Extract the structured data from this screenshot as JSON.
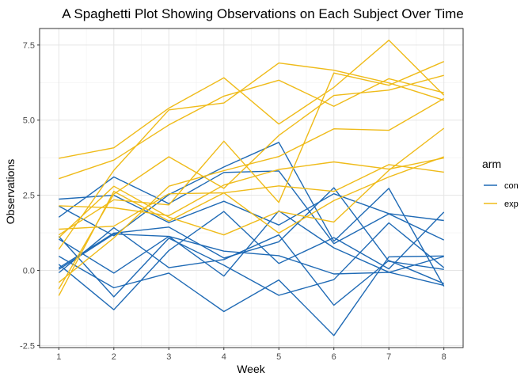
{
  "chart_data": {
    "type": "line",
    "title": "A Spaghetti Plot Showing Observations on Each Subject Over Time",
    "xlabel": "Week",
    "ylabel": "Observations",
    "x": [
      1,
      2,
      3,
      4,
      5,
      6,
      7,
      8
    ],
    "xticks": [
      "1",
      "2",
      "3",
      "4",
      "5",
      "6",
      "7",
      "8"
    ],
    "yticks": [
      -2.5,
      0,
      2.5,
      5,
      7.5
    ],
    "ytick_labels": [
      "-2.5",
      "0.0",
      "2.5",
      "5.0",
      "7.5"
    ],
    "xlim": [
      0.65,
      8.35
    ],
    "ylim": [
      -2.57,
      8.05
    ],
    "grid": true,
    "legend": {
      "title": "arm",
      "position": "right",
      "entries": [
        {
          "label": "con",
          "color": "#1f6ab5"
        },
        {
          "label": "exp",
          "color": "#efbb19"
        }
      ]
    },
    "series": [
      {
        "arm": "con",
        "values": [
          0.2,
          -1.31,
          0.66,
          1.96,
          0.23,
          1.09,
          0.05,
          1.94
        ]
      },
      {
        "arm": "con",
        "values": [
          1.13,
          -0.88,
          1.07,
          0.17,
          -0.83,
          -0.31,
          1.58,
          0.09
        ]
      },
      {
        "arm": "con",
        "values": [
          1.77,
          3.11,
          2.22,
          3.26,
          3.31,
          0.89,
          1.88,
          1.01
        ]
      },
      {
        "arm": "con",
        "values": [
          1.04,
          -0.09,
          1.13,
          -0.19,
          1.98,
          0.75,
          -0.06,
          -0.5
        ]
      },
      {
        "arm": "con",
        "values": [
          0.47,
          -0.58,
          -0.09,
          -1.37,
          -0.32,
          -2.17,
          0.45,
          0.48
        ]
      },
      {
        "arm": "con",
        "values": [
          2.37,
          2.5,
          1.59,
          2.3,
          1.51,
          2.55,
          1.89,
          1.66
        ]
      },
      {
        "arm": "con",
        "values": [
          0.03,
          1.21,
          1.13,
          0.64,
          0.49,
          -0.12,
          -0.07,
          0.46
        ]
      },
      {
        "arm": "con",
        "values": [
          -0.08,
          1.42,
          0.09,
          0.36,
          1.18,
          -1.16,
          0.33,
          -0.44
        ]
      },
      {
        "arm": "con",
        "values": [
          0.08,
          1.24,
          1.44,
          0.41,
          0.95,
          2.75,
          0.3,
          0.03
        ]
      },
      {
        "arm": "con",
        "values": [
          2.14,
          1.15,
          2.52,
          3.44,
          4.26,
          0.97,
          2.73,
          -0.53
        ]
      },
      {
        "arm": "exp",
        "values": [
          3.05,
          3.67,
          4.84,
          5.8,
          6.33,
          5.46,
          6.38,
          5.91
        ]
      },
      {
        "arm": "exp",
        "values": [
          -0.84,
          2.63,
          1.64,
          2.58,
          1.24,
          2.32,
          3.11,
          3.78
        ]
      },
      {
        "arm": "exp",
        "values": [
          2.15,
          2.08,
          1.82,
          2.84,
          3.36,
          3.61,
          3.37,
          3.74
        ]
      },
      {
        "arm": "exp",
        "values": [
          -0.62,
          2.54,
          3.78,
          2.73,
          4.49,
          5.82,
          6.0,
          6.49
        ]
      },
      {
        "arm": "exp",
        "values": [
          0.7,
          3.33,
          5.34,
          5.57,
          6.9,
          6.66,
          6.24,
          5.66
        ]
      },
      {
        "arm": "exp",
        "values": [
          3.73,
          4.08,
          5.4,
          6.41,
          4.87,
          6.09,
          7.66,
          5.83
        ]
      },
      {
        "arm": "exp",
        "values": [
          1.18,
          2.35,
          2.18,
          4.3,
          2.26,
          6.57,
          6.16,
          6.95
        ]
      },
      {
        "arm": "exp",
        "values": [
          1.37,
          1.47,
          2.55,
          2.58,
          2.81,
          2.63,
          3.52,
          3.27
        ]
      },
      {
        "arm": "exp",
        "values": [
          -0.4,
          1.08,
          2.8,
          3.32,
          3.79,
          4.71,
          4.66,
          5.72
        ]
      },
      {
        "arm": "exp",
        "values": [
          1.09,
          2.8,
          1.77,
          1.18,
          1.96,
          1.61,
          3.33,
          4.73
        ]
      }
    ]
  }
}
